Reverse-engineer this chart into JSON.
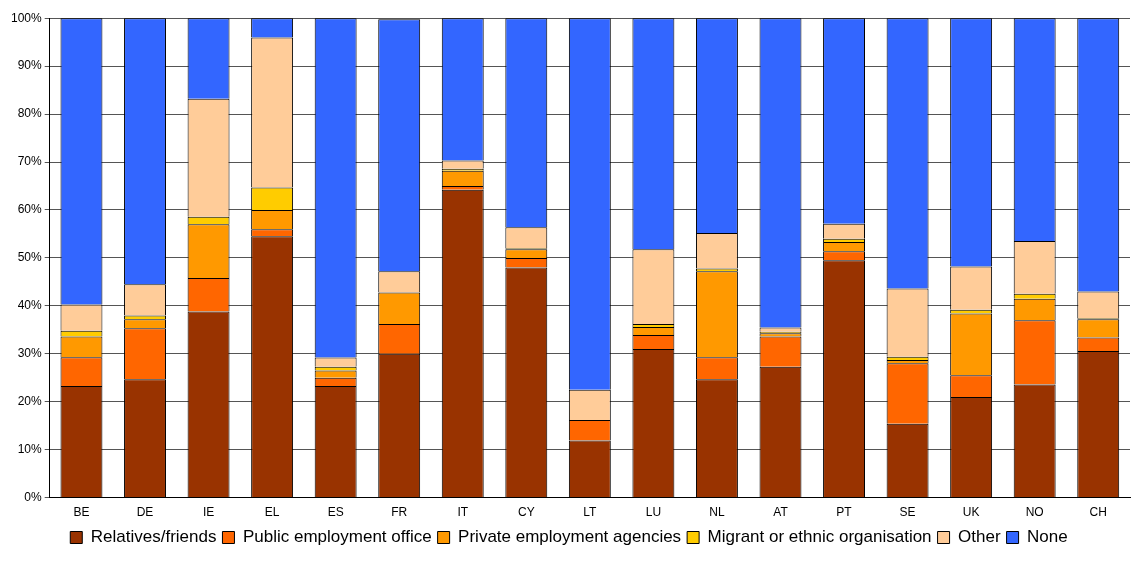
{
  "chart_data": {
    "type": "bar",
    "stacked": true,
    "categories": [
      "BE",
      "DE",
      "IE",
      "EL",
      "ES",
      "FR",
      "IT",
      "CY",
      "LT",
      "LU",
      "NL",
      "AT",
      "PT",
      "SE",
      "UK",
      "NO",
      "CH"
    ],
    "series": [
      {
        "name": "Relatives/friends",
        "color": "#993300",
        "values": [
          23.3,
          24.7,
          38.8,
          54.5,
          23.3,
          30.0,
          64.2,
          48.0,
          11.9,
          31.0,
          24.7,
          27.3,
          49.5,
          15.4,
          21.0,
          23.6,
          30.6
        ]
      },
      {
        "name": "Public employment office",
        "color": "#ff6600",
        "values": [
          6.0,
          10.6,
          7.0,
          1.5,
          1.7,
          6.2,
          0.8,
          2.0,
          4.3,
          2.9,
          4.6,
          6.3,
          1.9,
          12.6,
          4.5,
          13.4,
          2.8
        ]
      },
      {
        "name": "Private employment agencies",
        "color": "#ff9900",
        "values": [
          4.3,
          1.9,
          11.2,
          4.0,
          1.5,
          6.6,
          3.2,
          1.8,
          0,
          1.7,
          17.9,
          0.7,
          1.9,
          0.7,
          12.9,
          4.5,
          3.8
        ]
      },
      {
        "name": "Migrant or ethnic organisation",
        "color": "#ffcc00",
        "values": [
          1.2,
          0.8,
          1.6,
          4.7,
          0.8,
          null,
          0.4,
          0.2,
          0,
          0.6,
          0.6,
          0.3,
          0.7,
          0.7,
          0.8,
          1.0,
          0.2
        ]
      },
      {
        "name": "Other",
        "color": "#ffcc99",
        "values": [
          5.5,
          6.5,
          24.6,
          31.3,
          1.9,
          4.4,
          1.7,
          4.4,
          6.3,
          15.6,
          7.4,
          0.9,
          3.1,
          14.2,
          9.0,
          11.0,
          5.6
        ]
      },
      {
        "name": "None",
        "color": "#3366ff",
        "values": [
          59.7,
          55.5,
          16.8,
          4.0,
          70.8,
          52.6,
          29.7,
          43.6,
          77.5,
          48.2,
          44.8,
          64.5,
          42.9,
          56.4,
          51.8,
          46.5,
          57.0
        ]
      }
    ],
    "ylim": [
      0,
      100
    ],
    "yticks": [
      {
        "value": 0,
        "label": "0%"
      },
      {
        "value": 10,
        "label": "10%"
      },
      {
        "value": 20,
        "label": "20%"
      },
      {
        "value": 30,
        "label": "30%"
      },
      {
        "value": 40,
        "label": "40%"
      },
      {
        "value": 50,
        "label": "50%"
      },
      {
        "value": 60,
        "label": "60%"
      },
      {
        "value": 70,
        "label": "70%"
      },
      {
        "value": 80,
        "label": "80%"
      },
      {
        "value": 90,
        "label": "90%"
      },
      {
        "value": 100,
        "label": "100%"
      }
    ],
    "grid": "y",
    "legend": "bottom"
  }
}
